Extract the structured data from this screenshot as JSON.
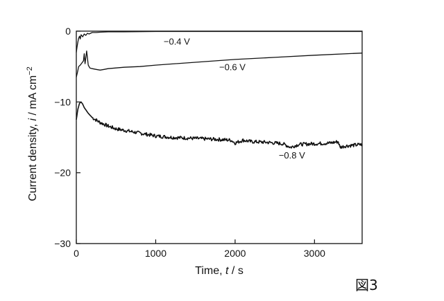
{
  "figure_label": "図3",
  "chart_data": {
    "type": "line",
    "title": "",
    "xlabel": "Time, t / s",
    "xlabel_parts": {
      "prefix": "Time, ",
      "var": "t",
      "suffix": " / s"
    },
    "ylabel": "Current density, i / mA cm−2",
    "ylabel_parts": {
      "prefix": "Current density, ",
      "var": "i",
      "suffix": " / mA cm",
      "sup": "−2"
    },
    "xlim": [
      0,
      3600
    ],
    "ylim": [
      -30,
      0
    ],
    "xticks": [
      0,
      1000,
      2000,
      3000
    ],
    "yticks": [
      0,
      -10,
      -20,
      -30
    ],
    "grid": false,
    "legend": "none",
    "series": [
      {
        "name": "−0.4 V",
        "color": "#111111",
        "points": [
          [
            0,
            -3.0
          ],
          [
            10,
            -2.2
          ],
          [
            20,
            -1.5
          ],
          [
            30,
            -1.0
          ],
          [
            40,
            -0.7
          ],
          [
            50,
            -1.1
          ],
          [
            60,
            -0.5
          ],
          [
            80,
            -0.8
          ],
          [
            100,
            -0.4
          ],
          [
            120,
            -0.6
          ],
          [
            140,
            -0.3
          ],
          [
            160,
            -0.4
          ],
          [
            200,
            -0.2
          ],
          [
            250,
            -0.2
          ],
          [
            300,
            -0.15
          ],
          [
            400,
            -0.1
          ],
          [
            600,
            -0.1
          ],
          [
            1000,
            -0.05
          ],
          [
            2000,
            -0.05
          ],
          [
            3000,
            -0.05
          ],
          [
            3600,
            -0.05
          ]
        ]
      },
      {
        "name": "−0.6 V",
        "color": "#111111",
        "points": [
          [
            0,
            -6.5
          ],
          [
            15,
            -5.8
          ],
          [
            30,
            -5.0
          ],
          [
            50,
            -4.8
          ],
          [
            70,
            -4.5
          ],
          [
            90,
            -4.2
          ],
          [
            100,
            -3.2
          ],
          [
            110,
            -4.6
          ],
          [
            130,
            -2.8
          ],
          [
            150,
            -4.8
          ],
          [
            170,
            -5.2
          ],
          [
            200,
            -5.3
          ],
          [
            250,
            -5.4
          ],
          [
            300,
            -5.5
          ],
          [
            350,
            -5.4
          ],
          [
            400,
            -5.3
          ],
          [
            600,
            -5.1
          ],
          [
            800,
            -5.0
          ],
          [
            1000,
            -4.8
          ],
          [
            1500,
            -4.4
          ],
          [
            2000,
            -4.0
          ],
          [
            2500,
            -3.7
          ],
          [
            3000,
            -3.4
          ],
          [
            3600,
            -3.1
          ]
        ]
      },
      {
        "name": "−0.8 V",
        "color": "#111111",
        "points": [
          [
            0,
            -12.5
          ],
          [
            20,
            -11.0
          ],
          [
            40,
            -10.2
          ],
          [
            60,
            -10.0
          ],
          [
            80,
            -10.3
          ],
          [
            100,
            -10.8
          ],
          [
            150,
            -11.6
          ],
          [
            200,
            -12.2
          ],
          [
            300,
            -12.9
          ],
          [
            400,
            -13.4
          ],
          [
            500,
            -13.8
          ],
          [
            600,
            -14.0
          ],
          [
            700,
            -14.2
          ],
          [
            800,
            -14.4
          ],
          [
            900,
            -14.6
          ],
          [
            1000,
            -14.8
          ],
          [
            1200,
            -15.0
          ],
          [
            1400,
            -15.1
          ],
          [
            1600,
            -15.2
          ],
          [
            1800,
            -15.3
          ],
          [
            1950,
            -15.4
          ],
          [
            2000,
            -15.8
          ],
          [
            2100,
            -15.4
          ],
          [
            2200,
            -15.6
          ],
          [
            2400,
            -15.7
          ],
          [
            2600,
            -15.9
          ],
          [
            2700,
            -16.4
          ],
          [
            2800,
            -16.0
          ],
          [
            3000,
            -15.9
          ],
          [
            3200,
            -15.8
          ],
          [
            3300,
            -15.6
          ],
          [
            3320,
            -16.4
          ],
          [
            3400,
            -16.2
          ],
          [
            3500,
            -16.1
          ],
          [
            3600,
            -16.0
          ]
        ],
        "noise": 0.25
      }
    ],
    "annotations": [
      {
        "text": "−0.4 V",
        "x": 1100,
        "y": -1.9
      },
      {
        "text": "−0.6 V",
        "x": 1800,
        "y": -5.5
      },
      {
        "text": "−0.8 V",
        "x": 2550,
        "y": -18.0
      }
    ]
  }
}
